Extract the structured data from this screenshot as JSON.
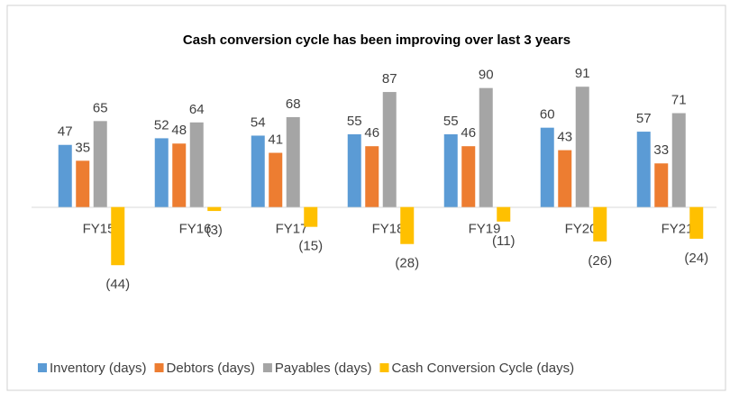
{
  "chart_data": {
    "type": "bar",
    "title": "Cash conversion cycle has been improving over last 3 years",
    "categories": [
      "FY15",
      "FY16",
      "FY17",
      "FY18",
      "FY19",
      "FY20",
      "FY21"
    ],
    "series": [
      {
        "name": "Inventory (days)",
        "color": "#5b9bd5",
        "values": [
          47,
          52,
          54,
          55,
          55,
          60,
          57
        ]
      },
      {
        "name": "Debtors (days)",
        "color": "#ed7d31",
        "values": [
          35,
          48,
          41,
          46,
          46,
          43,
          33
        ]
      },
      {
        "name": "Payables (days)",
        "color": "#a5a5a5",
        "values": [
          65,
          64,
          68,
          87,
          90,
          91,
          71
        ]
      },
      {
        "name": "Cash Conversion Cycle (days)",
        "color": "#ffc000",
        "values": [
          -44,
          -3,
          -15,
          -28,
          -11,
          -26,
          -24
        ],
        "value_labels": [
          "(44)",
          "(3)",
          "(15)",
          "(28)",
          "(11)",
          "(26)",
          "(24)"
        ]
      }
    ],
    "ylim": [
      -80,
      100
    ],
    "legend": "bottom"
  }
}
